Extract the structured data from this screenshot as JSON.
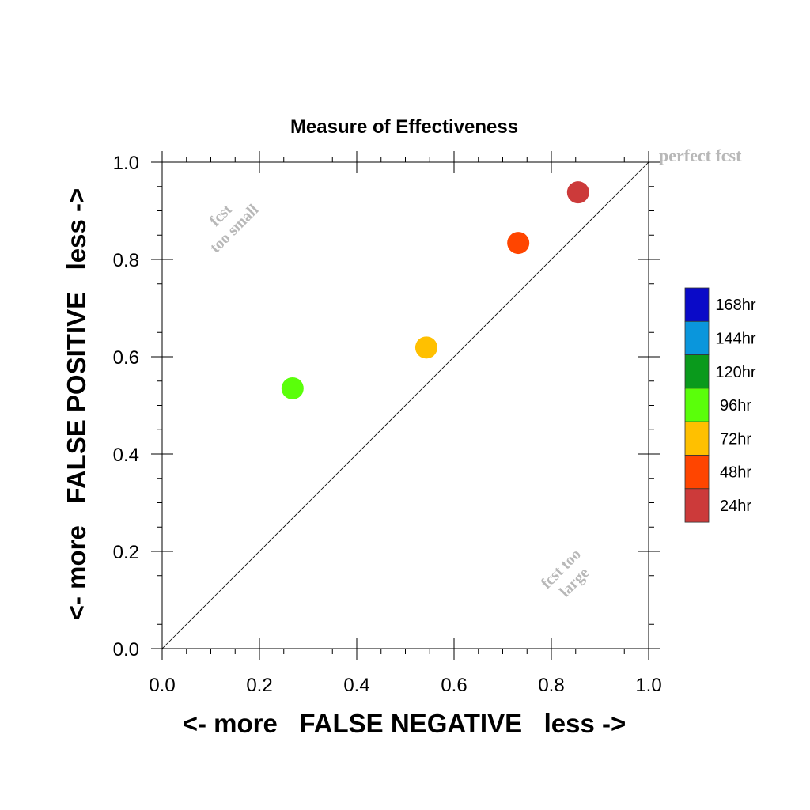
{
  "chart_data": {
    "type": "scatter",
    "title": "Measure of Effectiveness",
    "xlabel": "<- more   FALSE NEGATIVE   less ->",
    "ylabel": "<- more   FALSE POSITIVE   less ->",
    "xlim": [
      0.0,
      1.0
    ],
    "ylim": [
      0.0,
      1.0
    ],
    "x_ticks": [
      "0.0",
      "0.2",
      "0.4",
      "0.6",
      "0.8",
      "1.0"
    ],
    "y_ticks": [
      "0.0",
      "0.2",
      "0.4",
      "0.6",
      "0.8",
      "1.0"
    ],
    "grid": false,
    "reference_line": {
      "from": [
        0.0,
        0.0
      ],
      "to": [
        1.0,
        1.0
      ]
    },
    "annotations": {
      "perfect": "perfect fcst",
      "too_small_line1": "fcst",
      "too_small_line2": "too small",
      "too_large_line1": "fcst too",
      "too_large_line2": "large"
    },
    "points": [
      {
        "x": 0.855,
        "y": 0.938,
        "color": "#cc3a3a"
      },
      {
        "x": 0.732,
        "y": 0.834,
        "color": "#ff4500"
      },
      {
        "x": 0.543,
        "y": 0.619,
        "color": "#ffc000"
      },
      {
        "x": 0.268,
        "y": 0.535,
        "color": "#5aff0a"
      }
    ],
    "legend": {
      "placement": "right",
      "items": [
        {
          "label": "168hr",
          "color": "#0a0ac8"
        },
        {
          "label": "144hr",
          "color": "#0a96dc"
        },
        {
          "label": "120hr",
          "color": "#0a9a1c"
        },
        {
          "label": "96hr",
          "color": "#5aff0a"
        },
        {
          "label": "72hr",
          "color": "#ffc000"
        },
        {
          "label": "48hr",
          "color": "#ff4500"
        },
        {
          "label": "24hr",
          "color": "#cc3a3a"
        }
      ]
    }
  }
}
